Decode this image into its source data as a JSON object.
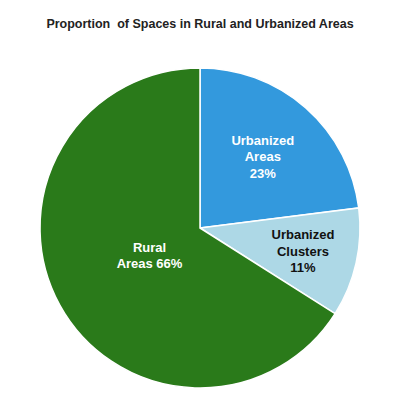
{
  "chart_data": {
    "type": "pie",
    "title": "Proportion  of Spaces in Rural and Urbanized Areas",
    "categories": [
      "Urbanized\nAreas\n23%",
      "Urbanized\nClusters\n11%",
      "Rural\nAreas 66%"
    ],
    "values": [
      23,
      11,
      66
    ],
    "colors": [
      "#3399DD",
      "#ADD8E6",
      "#2A7A1A"
    ]
  }
}
